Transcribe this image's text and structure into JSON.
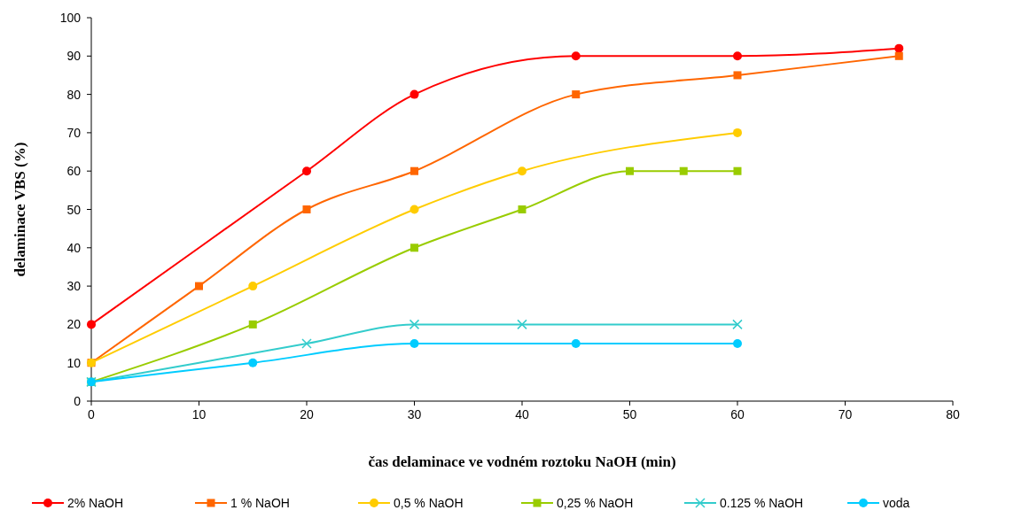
{
  "chart_data": {
    "type": "line",
    "xlabel": "čas delaminace ve vodném roztoku NaOH (min)",
    "ylabel": "delaminace VBS (%)",
    "xlim": [
      0,
      80
    ],
    "xticks": [
      0,
      10,
      20,
      30,
      40,
      50,
      60,
      70,
      80
    ],
    "ylim": [
      0,
      100
    ],
    "yticks": [
      0,
      10,
      20,
      30,
      40,
      50,
      60,
      70,
      80,
      90,
      100
    ],
    "grid": false,
    "legend": "bottom",
    "line_style": "solid",
    "series": [
      {
        "name": "2% NaOH",
        "color": "#ff0000",
        "marker": "circle",
        "x": [
          0,
          20,
          30,
          45,
          60,
          75
        ],
        "values": [
          20,
          60,
          80,
          90,
          90,
          92
        ]
      },
      {
        "name": "1 % NaOH",
        "color": "#ff6600",
        "marker": "square",
        "x": [
          0,
          10,
          20,
          30,
          45,
          60,
          75
        ],
        "values": [
          10,
          30,
          50,
          60,
          80,
          85,
          90
        ]
      },
      {
        "name": "0,5 % NaOH",
        "color": "#ffcc00",
        "marker": "circle",
        "x": [
          0,
          15,
          30,
          40,
          60
        ],
        "values": [
          10,
          30,
          50,
          60,
          70
        ]
      },
      {
        "name": "0,25 % NaOH",
        "color": "#99cc00",
        "marker": "square",
        "x": [
          0,
          15,
          30,
          40,
          50,
          55,
          60
        ],
        "values": [
          5,
          20,
          40,
          50,
          60,
          60,
          60
        ]
      },
      {
        "name": "0.125 % NaOH",
        "color": "#33cccc",
        "marker": "cross",
        "x": [
          0,
          20,
          30,
          40,
          60
        ],
        "values": [
          5,
          15,
          20,
          20,
          20
        ]
      },
      {
        "name": "voda",
        "color": "#00ccff",
        "marker": "circle",
        "x": [
          0,
          15,
          30,
          45,
          60
        ],
        "values": [
          5,
          10,
          15,
          15,
          15
        ]
      }
    ]
  }
}
